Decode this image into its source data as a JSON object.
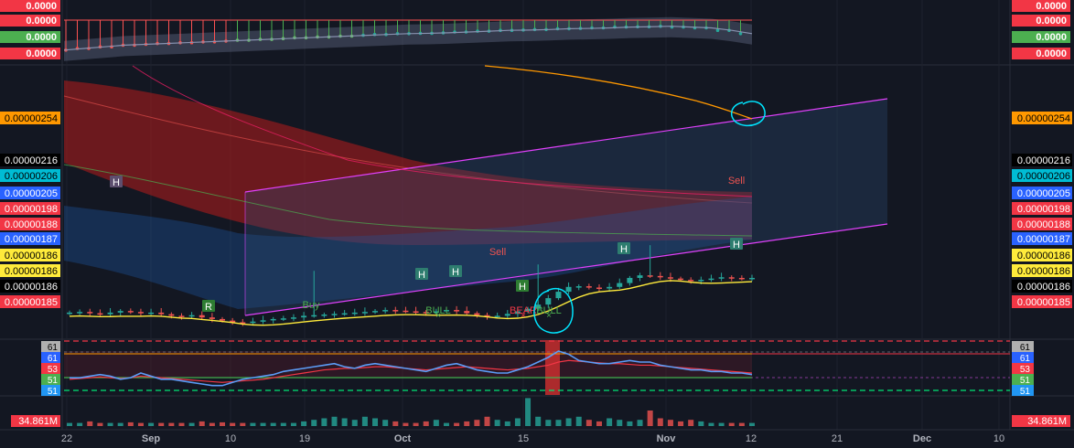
{
  "chart_data": [
    {
      "type": "line",
      "panel": "oscillator-top",
      "price_labels_left": [
        "0.0000",
        "0.0000",
        "0.0000",
        "0.0000"
      ],
      "price_labels_right": [
        "0.0000",
        "0.0000",
        "0.0000",
        "0.0000"
      ],
      "label_colors": [
        "#f23645",
        "#f23645",
        "#4caf50",
        "#f23645"
      ],
      "series": [
        {
          "values": [
            -0.6,
            -0.5,
            -0.4,
            -0.3,
            -0.25,
            -0.2,
            -0.15,
            -0.1,
            -0.05,
            0.0,
            0.05,
            0.1,
            0.15,
            0.2,
            0.25,
            0.3,
            0.35,
            0.4,
            0.42,
            0.45,
            0.5,
            0.55,
            0.6,
            0.62,
            0.65,
            0.7,
            0.72,
            0.75,
            0.8,
            0.82,
            0.85,
            0.8,
            0.75,
            0.6,
            0.4
          ]
        }
      ]
    },
    {
      "type": "candlestick",
      "panel": "price",
      "x_tick_labels": [
        "22",
        "Sep",
        "10",
        "19",
        "Oct",
        "15",
        "Nov",
        "12",
        "21",
        "Dec",
        "10"
      ],
      "price_labels_left": [
        "0.00000254",
        "0.00000216",
        "0.00000206",
        "0.00000205",
        "0.00000198",
        "0.00000188",
        "0.00000187",
        "0.00000186",
        "0.00000186",
        "0.00000186",
        "0.00000185"
      ],
      "price_labels_right": [
        "0.00000254",
        "0.00000216",
        "0.00000206",
        "0.00000205",
        "0.00000198",
        "0.00000188",
        "0.00000187",
        "0.00000186",
        "0.00000186",
        "0.00000186",
        "0.00000185"
      ],
      "label_bg_colors": [
        "#ff9800",
        "#000000",
        "#00bcd4",
        "#2962ff",
        "#f23645",
        "#f23645",
        "#2962ff",
        "#ffeb3b",
        "#ffeb3b",
        "#000000",
        "#f23645"
      ],
      "label_text_colors": [
        "#000000",
        "#ffffff",
        "#000000",
        "#ffffff",
        "#ffffff",
        "#ffffff",
        "#ffffff",
        "#000000",
        "#000000",
        "#ffffff",
        "#ffffff"
      ],
      "annotations": [
        "H",
        "R",
        "Buy",
        "H",
        "H",
        "Sell",
        "H",
        "BEAR",
        "BULL",
        "BULL",
        "H",
        "H",
        "Sell"
      ],
      "accent_colors": {
        "up": "#26a69a",
        "down": "#ef5350",
        "channel": "#e040fb",
        "circle": "#00e5ff"
      },
      "close_values": [
        1.88,
        1.882,
        1.878,
        1.875,
        1.88,
        1.885,
        1.882,
        1.878,
        1.88,
        1.875,
        1.87,
        1.868,
        1.872,
        1.865,
        1.86,
        1.855,
        1.85,
        1.848,
        1.852,
        1.856,
        1.86,
        1.862,
        1.865,
        1.87,
        1.872,
        1.874,
        1.876,
        1.878,
        1.88,
        1.882,
        1.885,
        1.888,
        1.886,
        1.884,
        1.882,
        1.88,
        1.884,
        1.888,
        1.885,
        1.878,
        1.872,
        1.868,
        1.87,
        1.876,
        1.884,
        1.892,
        1.905,
        1.925,
        1.945,
        1.96,
        1.962,
        1.958,
        1.955,
        1.96,
        1.972,
        1.988,
        1.996,
        1.994,
        1.99,
        1.986,
        1.982,
        1.978,
        1.982,
        1.986,
        1.99,
        1.988,
        1.986,
        1.988
      ],
      "open_values": [
        1.878,
        1.88,
        1.882,
        1.878,
        1.875,
        1.88,
        1.885,
        1.882,
        1.878,
        1.88,
        1.875,
        1.87,
        1.868,
        1.872,
        1.865,
        1.86,
        1.855,
        1.85,
        1.848,
        1.852,
        1.856,
        1.86,
        1.862,
        1.865,
        1.87,
        1.872,
        1.874,
        1.876,
        1.878,
        1.88,
        1.882,
        1.885,
        1.888,
        1.886,
        1.884,
        1.882,
        1.88,
        1.884,
        1.888,
        1.885,
        1.878,
        1.872,
        1.868,
        1.87,
        1.876,
        1.884,
        1.892,
        1.905,
        1.925,
        1.945,
        1.96,
        1.962,
        1.958,
        1.955,
        1.96,
        1.972,
        1.988,
        1.996,
        1.994,
        1.99,
        1.986,
        1.982,
        1.978,
        1.982,
        1.986,
        1.99,
        1.988,
        1.986
      ]
    },
    {
      "type": "line",
      "panel": "rsi",
      "level_labels_left": [
        "61",
        "61",
        "53",
        "51",
        "51"
      ],
      "level_labels_right": [
        "61",
        "61",
        "53",
        "51",
        "51"
      ],
      "level_colors": [
        "#b0b0b0",
        "#2962ff",
        "#f23645",
        "#4caf50",
        "#2196f3"
      ],
      "ylim": [
        40,
        75
      ],
      "series": [
        {
          "values": [
            50,
            50.5,
            51,
            51.5,
            51,
            50.5,
            51,
            52,
            51.5,
            51,
            50.5,
            50,
            49.5,
            49,
            48.5,
            48,
            48.5,
            49,
            49.5,
            50,
            51,
            52,
            53,
            54,
            55,
            56,
            56.5,
            57,
            57,
            57.5,
            58,
            58,
            57.5,
            57,
            56.5,
            56,
            56.5,
            57,
            57.5,
            58,
            57.5,
            57,
            56.5,
            56,
            56.5,
            57,
            58,
            59,
            61,
            62,
            61.5,
            61,
            60.5,
            60,
            60,
            59.5,
            59,
            59,
            58.5,
            58,
            57.5,
            57,
            56.5,
            56,
            55.5,
            55,
            54.5,
            54
          ]
        },
        {
          "values": [
            51,
            51,
            52,
            53,
            52,
            50,
            51,
            54,
            52,
            50,
            50,
            49,
            48,
            47,
            46,
            46,
            48,
            50,
            51,
            52,
            53,
            55,
            56,
            57,
            58,
            59,
            60,
            58,
            57,
            59,
            60,
            59,
            58,
            57,
            56,
            55,
            57,
            59,
            60,
            58,
            56,
            55,
            54,
            54,
            56,
            58,
            61,
            64,
            68,
            66,
            62,
            61,
            60,
            60,
            61,
            62,
            61,
            61,
            59,
            58,
            57,
            56,
            56,
            55,
            55,
            54,
            54,
            53
          ]
        }
      ]
    },
    {
      "type": "bar",
      "panel": "volume",
      "volume_label_left": "34.861M",
      "volume_label_right": "34.861M",
      "values": [
        0.1,
        0.1,
        0.15,
        0.1,
        0.1,
        0.1,
        0.12,
        0.1,
        0.1,
        0.1,
        0.1,
        0.1,
        0.1,
        0.15,
        0.1,
        0.12,
        0.1,
        0.1,
        0.1,
        0.1,
        0.1,
        0.1,
        0.1,
        0.15,
        0.2,
        0.25,
        0.3,
        0.25,
        0.2,
        0.3,
        0.25,
        0.2,
        0.15,
        0.1,
        0.1,
        0.15,
        0.2,
        0.1,
        0.1,
        0.15,
        0.2,
        0.3,
        0.2,
        0.15,
        0.25,
        0.9,
        0.3,
        0.2,
        0.2,
        0.25,
        0.3,
        0.2,
        0.15,
        0.25,
        0.2,
        0.15,
        0.2,
        0.5,
        0.25,
        0.2,
        0.15,
        0.2,
        0.15,
        0.1,
        0.1,
        0.1,
        0.1,
        0.1
      ]
    }
  ]
}
